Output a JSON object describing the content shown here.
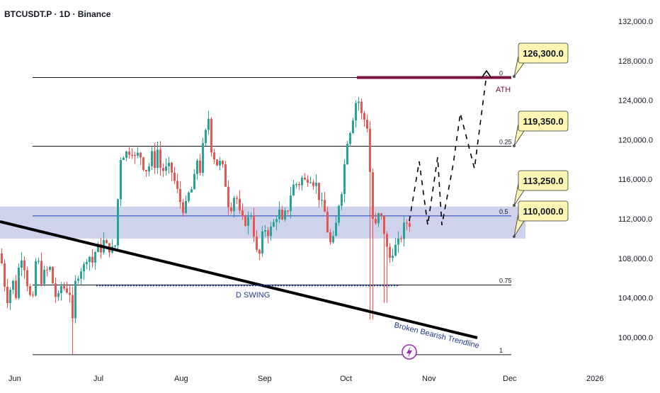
{
  "header": {
    "symbol_title": "BTCUSDT.P · 1D · Binance"
  },
  "chart_data": {
    "type": "candlestick",
    "title": "BTCUSDT.P · 1D · Binance",
    "y_axis": {
      "ticks": [
        "132,000.0",
        "128,000.0",
        "124,000.0",
        "120,000.0",
        "116,000.0",
        "112,000.0",
        "108,000.0",
        "104,000.0",
        "100,000.0"
      ],
      "range": [
        96500,
        133000
      ]
    },
    "x_axis": {
      "ticks": [
        "Jun",
        "Jul",
        "Aug",
        "Sep",
        "Oct",
        "Nov",
        "Dec",
        "2026"
      ]
    },
    "fib_levels": [
      {
        "label": "0",
        "value": 126300
      },
      {
        "label": "0.25",
        "value": 119350
      },
      {
        "label": "0.5",
        "value": 112300
      },
      {
        "label": "0.75",
        "value": 105300
      },
      {
        "label": "1",
        "value": 98250
      }
    ],
    "zone": {
      "low": 110000,
      "high": 113250
    },
    "callouts": [
      "126,300.0",
      "119,350.0",
      "113,250.0",
      "110,000.0"
    ],
    "annotations": {
      "ath": "ATH",
      "d_swing": "D SWING",
      "trendline": "Broken Bearish Trendline",
      "lightning_icon": "lightning-icon"
    },
    "colors": {
      "up": "#26a69a",
      "down": "#ef5350",
      "zone": "#c5cbe8",
      "ath_line": "#7b1042",
      "dark_blue": "#1e3a8a",
      "callout_bg": "#fff6b5",
      "lightning": "#9c27b0"
    }
  }
}
